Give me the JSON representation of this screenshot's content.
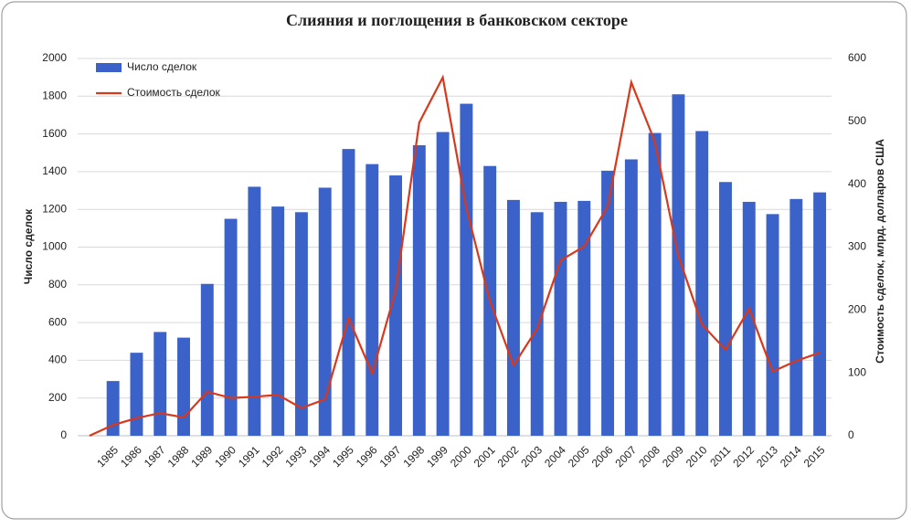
{
  "chart_data": {
    "type": "bar-line",
    "title": "Слияния и поглощения в банковском секторе",
    "y_label": "Число сделок",
    "y2_label": "Стоимость сделок, млрд. долларов США",
    "categories": [
      null,
      "1985",
      "1986",
      "1987",
      "1988",
      "1989",
      "1990",
      "1991",
      "1992",
      "1993",
      "1994",
      "1995",
      "1996",
      "1997",
      "1998",
      "1999",
      "2000",
      "2001",
      "2002",
      "2003",
      "2004",
      "2005",
      "2006",
      "2007",
      "2008",
      "2009",
      "2010",
      "2011",
      "2012",
      "2013",
      "2014",
      "2015"
    ],
    "series": [
      {
        "name": "Число сделок",
        "type": "bar",
        "color": "#3a62c8",
        "values": [
          null,
          290,
          440,
          550,
          520,
          805,
          1150,
          1320,
          1215,
          1185,
          1315,
          1520,
          1440,
          1380,
          1540,
          1610,
          1760,
          1430,
          1250,
          1185,
          1240,
          1245,
          1405,
          1465,
          1605,
          1810,
          1615,
          1345,
          1240,
          1175,
          1255,
          1290
        ]
      },
      {
        "name": "Стоимость сделок",
        "type": "line",
        "axis": "y2",
        "color": "#d8381c",
        "values": [
          0,
          17,
          28,
          36,
          29,
          70,
          60,
          62,
          65,
          44,
          58,
          187,
          99,
          231,
          498,
          570,
          362,
          214,
          112,
          170,
          279,
          301,
          365,
          562,
          468,
          286,
          177,
          137,
          202,
          102,
          119,
          132
        ]
      }
    ],
    "ylim": [
      0,
      2000
    ],
    "yticks": [
      0,
      200,
      400,
      600,
      800,
      1000,
      1200,
      1400,
      1600,
      1800,
      2000
    ],
    "y2lim": [
      0,
      600
    ],
    "y2ticks": [
      0,
      100,
      200,
      300,
      400,
      500,
      600
    ],
    "grid": true,
    "legend": "top-left"
  }
}
